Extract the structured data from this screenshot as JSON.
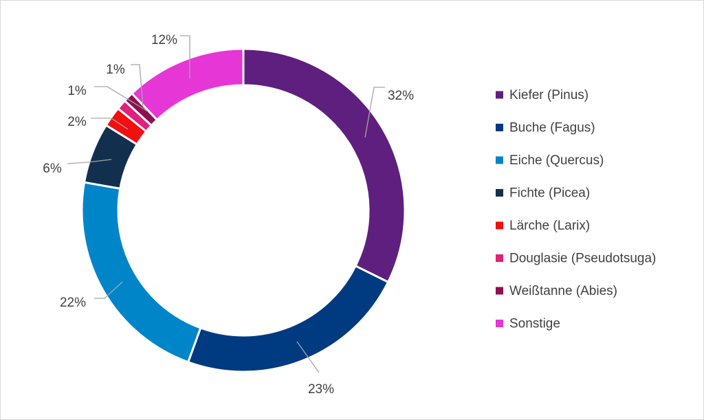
{
  "chart_data": {
    "type": "pie",
    "variant": "donut",
    "title": "",
    "categories": [
      "Kiefer (Pinus)",
      "Buche (Fagus)",
      "Eiche (Quercus)",
      "Fichte (Picea)",
      "Lärche (Larix)",
      "Douglasie (Pseudotsuga)",
      "Weißtanne (Abies)",
      "Sonstige"
    ],
    "values": [
      32,
      23,
      22,
      6,
      2,
      1,
      1,
      12
    ],
    "data_labels": [
      "32%",
      "23%",
      "22%",
      "6%",
      "2%",
      "1%",
      "1%",
      "12%"
    ],
    "colors": [
      "#5F1F7E",
      "#003A80",
      "#0085C9",
      "#12304E",
      "#F20F0F",
      "#E0207A",
      "#8C1150",
      "#E636D6"
    ],
    "legend_position": "right"
  }
}
